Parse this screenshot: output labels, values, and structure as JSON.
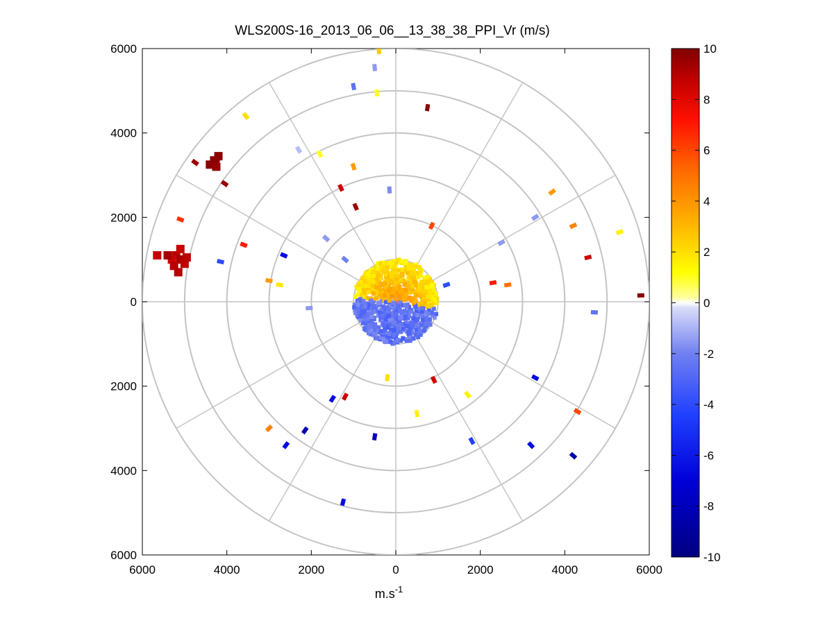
{
  "chart_data": {
    "type": "scatter",
    "subtype": "polar-ppi",
    "title": "WLS200S-16_2013_06_06__13_38_38_PPI_Vr (m/s)",
    "xlabel_base": "m.s",
    "xlabel_exponent": "-1",
    "xlim": [
      -6000,
      6000
    ],
    "ylim": [
      -6000,
      6000
    ],
    "x_tick_values": [
      -6000,
      -4000,
      -2000,
      0,
      2000,
      4000,
      6000
    ],
    "x_tick_labels": [
      "6000",
      "4000",
      "2000",
      "0",
      "2000",
      "4000",
      "6000"
    ],
    "y_tick_values": [
      6000,
      4000,
      2000,
      0,
      -2000,
      -4000,
      -6000
    ],
    "y_tick_labels": [
      "6000",
      "4000",
      "2000",
      "0",
      "2000",
      "4000",
      "6000"
    ],
    "range_rings_m": [
      1000,
      2000,
      3000,
      4000,
      5000,
      6000
    ],
    "spokes_deg": [
      0,
      30,
      60,
      90,
      120,
      150,
      180,
      210,
      240,
      270,
      300,
      330
    ],
    "grid": true,
    "colorbar": {
      "min": -10,
      "max": 10,
      "tick_values": [
        10,
        8,
        6,
        4,
        2,
        0,
        -2,
        -4,
        -6,
        -8,
        -10
      ],
      "tick_labels": [
        "10",
        "8",
        "6",
        "4",
        "2",
        "0",
        "-2",
        "-4",
        "-6",
        "-8",
        "-10"
      ],
      "colormap": "blue-white-yellow-red"
    },
    "near_field": {
      "positive_sector": {
        "az_from_deg": 275,
        "az_to_deg": 100,
        "r_max_m": 1000,
        "vr": 2.5
      },
      "negative_sector": {
        "az_from_deg": 100,
        "az_to_deg": 275,
        "r_max_m": 1000,
        "vr": -2.5
      }
    },
    "points": [
      {
        "x": -400,
        "y": 5950,
        "vr": 2.5
      },
      {
        "x": -500,
        "y": 5550,
        "vr": -1.5
      },
      {
        "x": -1000,
        "y": 5100,
        "vr": -2.5
      },
      {
        "x": -450,
        "y": 4950,
        "vr": 1.0
      },
      {
        "x": 750,
        "y": 4600,
        "vr": 9.8
      },
      {
        "x": -3550,
        "y": 4400,
        "vr": 2.0
      },
      {
        "x": -2300,
        "y": 3600,
        "vr": -0.8
      },
      {
        "x": -1800,
        "y": 3500,
        "vr": 1.0
      },
      {
        "x": -4250,
        "y": 3350,
        "vr": 9.8
      },
      {
        "x": -4750,
        "y": 3300,
        "vr": 9.5
      },
      {
        "x": -1000,
        "y": 3200,
        "vr": 3.8
      },
      {
        "x": -4050,
        "y": 2800,
        "vr": 9.5
      },
      {
        "x": -1300,
        "y": 2700,
        "vr": 8.5
      },
      {
        "x": -150,
        "y": 2650,
        "vr": -1.8
      },
      {
        "x": 3700,
        "y": 2600,
        "vr": 3.8
      },
      {
        "x": -950,
        "y": 2250,
        "vr": 9.5
      },
      {
        "x": 5300,
        "y": 1650,
        "vr": 1.5
      },
      {
        "x": -5100,
        "y": 1950,
        "vr": 6.5
      },
      {
        "x": 3300,
        "y": 2000,
        "vr": -1.5
      },
      {
        "x": 4200,
        "y": 1800,
        "vr": 4.5
      },
      {
        "x": 2500,
        "y": 1400,
        "vr": -1.5
      },
      {
        "x": -3600,
        "y": 1350,
        "vr": 7.0
      },
      {
        "x": 4550,
        "y": 1050,
        "vr": 8.5
      },
      {
        "x": -2650,
        "y": 1100,
        "vr": -6.5
      },
      {
        "x": -4150,
        "y": 950,
        "vr": -4.0
      },
      {
        "x": 5800,
        "y": 150,
        "vr": 9.8
      },
      {
        "x": -3000,
        "y": 500,
        "vr": 3.8
      },
      {
        "x": -2750,
        "y": 400,
        "vr": 1.8
      },
      {
        "x": 2300,
        "y": 450,
        "vr": 7.0
      },
      {
        "x": 2650,
        "y": 400,
        "vr": 5.0
      },
      {
        "x": 4700,
        "y": -250,
        "vr": -2.5
      },
      {
        "x": 3300,
        "y": -1800,
        "vr": -6.5
      },
      {
        "x": 1700,
        "y": -2200,
        "vr": 1.5
      },
      {
        "x": 900,
        "y": -1850,
        "vr": 8.5
      },
      {
        "x": -1200,
        "y": -2250,
        "vr": 8.5
      },
      {
        "x": -1500,
        "y": -2300,
        "vr": -6.5
      },
      {
        "x": 4300,
        "y": -2600,
        "vr": 6.0
      },
      {
        "x": 500,
        "y": -2650,
        "vr": 1.5
      },
      {
        "x": -3000,
        "y": -3000,
        "vr": 4.5
      },
      {
        "x": -2150,
        "y": -3050,
        "vr": -8.5
      },
      {
        "x": -500,
        "y": -3200,
        "vr": -8.0
      },
      {
        "x": 1800,
        "y": -3300,
        "vr": -4.5
      },
      {
        "x": -2600,
        "y": -3400,
        "vr": -6.5
      },
      {
        "x": 3200,
        "y": -3400,
        "vr": -6.5
      },
      {
        "x": 4200,
        "y": -3650,
        "vr": -8.5
      },
      {
        "x": -1250,
        "y": -4750,
        "vr": -6.5
      },
      {
        "x": -1650,
        "y": 1500,
        "vr": -1.5
      },
      {
        "x": 1200,
        "y": 400,
        "vr": -4.0
      },
      {
        "x": -1200,
        "y": 1000,
        "vr": -2.0
      },
      {
        "x": 850,
        "y": 1800,
        "vr": 6.0
      },
      {
        "x": -2050,
        "y": -150,
        "vr": -1.5
      },
      {
        "x": -200,
        "y": -1800,
        "vr": 2.0
      }
    ],
    "clusters": [
      {
        "name": "west-red-cluster",
        "x": -5200,
        "y": 1050,
        "vr": 9.0
      },
      {
        "name": "northwest-red-cluster",
        "x": -4300,
        "y": 3350,
        "vr": 9.8
      }
    ],
    "cluster_points": [
      {
        "x": -5200,
        "y": 1100,
        "vr": 9.0
      },
      {
        "x": -5300,
        "y": 1000,
        "vr": 8.5
      },
      {
        "x": -5100,
        "y": 1000,
        "vr": 9.2
      },
      {
        "x": -5000,
        "y": 900,
        "vr": 8.8
      },
      {
        "x": -5250,
        "y": 850,
        "vr": 9.0
      },
      {
        "x": -5100,
        "y": 1250,
        "vr": 8.6
      },
      {
        "x": -5400,
        "y": 1100,
        "vr": 9.3
      },
      {
        "x": -5650,
        "y": 1100,
        "vr": 8.7
      },
      {
        "x": -5150,
        "y": 700,
        "vr": 9.0
      },
      {
        "x": -4950,
        "y": 1050,
        "vr": 8.9
      },
      {
        "x": -4300,
        "y": 3350,
        "vr": 9.8
      },
      {
        "x": -4400,
        "y": 3250,
        "vr": 9.8
      },
      {
        "x": -4200,
        "y": 3450,
        "vr": 9.8
      },
      {
        "x": -4250,
        "y": 3200,
        "vr": 9.6
      }
    ]
  }
}
